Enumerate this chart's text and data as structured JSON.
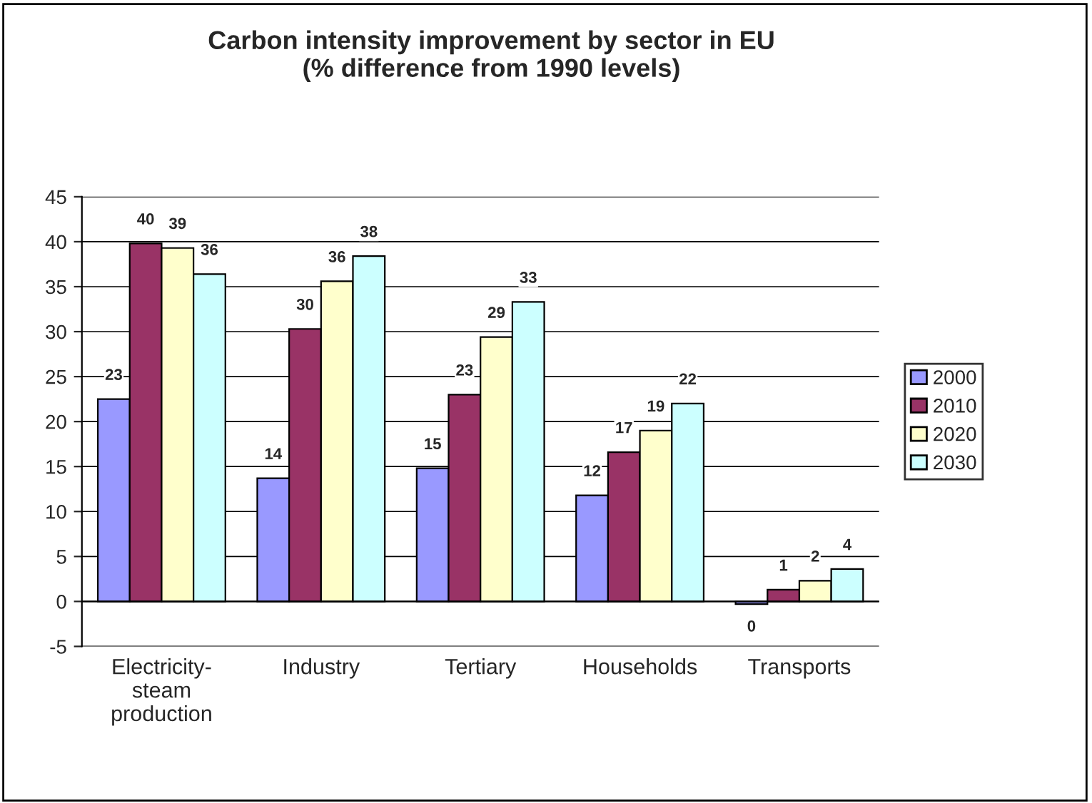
{
  "chart_data": {
    "type": "bar",
    "title": "Carbon intensity improvement by sector in EU\n(% difference from 1990 levels)",
    "categories": [
      "Electricity-\nsteam\nproduction",
      "Industry",
      "Tertiary",
      "Households",
      "Transports"
    ],
    "series": [
      {
        "name": "2000",
        "color": "#9999ff",
        "values": [
          22.5,
          13.7,
          14.8,
          11.8,
          -0.3
        ],
        "value_labels": [
          "23",
          "14",
          "15",
          "12",
          "0"
        ]
      },
      {
        "name": "2010",
        "color": "#993366",
        "values": [
          39.8,
          30.3,
          23.0,
          16.6,
          1.3
        ],
        "value_labels": [
          "40",
          "30",
          "23",
          "17",
          "1"
        ]
      },
      {
        "name": "2020",
        "color": "#ffffcc",
        "values": [
          39.3,
          35.6,
          29.4,
          19.0,
          2.3
        ],
        "value_labels": [
          "39",
          "36",
          "29",
          "19",
          "2"
        ]
      },
      {
        "name": "2030",
        "color": "#ccffff",
        "values": [
          36.4,
          38.4,
          33.3,
          22.0,
          3.6
        ],
        "value_labels": [
          "36",
          "38",
          "33",
          "22",
          "4"
        ]
      }
    ],
    "ylim": [
      -5,
      45
    ],
    "yticks": [
      -5,
      0,
      5,
      10,
      15,
      20,
      25,
      30,
      35,
      40,
      45
    ],
    "grid": "y",
    "legend": "right"
  }
}
